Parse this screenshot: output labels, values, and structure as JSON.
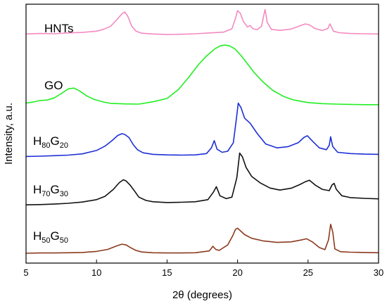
{
  "chart_data": {
    "type": "line",
    "title": "",
    "xlabel": "2θ (degrees)",
    "ylabel": "Intensity, a.u.",
    "xlim": [
      5,
      30
    ],
    "ylim": [
      0,
      100
    ],
    "xticks": [
      5,
      10,
      15,
      20,
      25,
      30
    ],
    "grid": false,
    "legend": "none",
    "series": [
      {
        "name": "HNTs",
        "label_text": "HNTs",
        "color": "#f48ac2",
        "x": [
          5,
          6,
          7,
          8,
          9,
          10,
          10.5,
          11,
          11.4,
          11.8,
          12.0,
          12.2,
          12.5,
          12.8,
          13.2,
          14,
          15,
          16,
          17,
          18,
          19,
          19.6,
          19.85,
          20.0,
          20.2,
          20.4,
          20.7,
          20.9,
          21.1,
          21.4,
          21.7,
          21.85,
          21.95,
          22.1,
          22.4,
          23,
          23.8,
          24.4,
          24.8,
          25.1,
          25.5,
          26.0,
          26.4,
          26.55,
          26.65,
          26.8,
          27.2,
          28,
          29,
          30
        ],
        "values": [
          88.5,
          88.7,
          88.6,
          88.9,
          89.1,
          89.6,
          90.3,
          91.5,
          93.8,
          96.3,
          97.0,
          95.5,
          91.5,
          89.6,
          88.8,
          88.5,
          88.3,
          88.4,
          88.6,
          88.9,
          89.2,
          90.5,
          94.5,
          97.5,
          96.5,
          93.5,
          91.2,
          91.8,
          90.5,
          90.2,
          91.5,
          95.5,
          98.0,
          93.0,
          90.3,
          89.9,
          90.4,
          91.6,
          92.4,
          92.0,
          90.6,
          89.9,
          90.6,
          92.4,
          91.3,
          89.6,
          89.0,
          88.7,
          88.6,
          88.5
        ]
      },
      {
        "name": "GO",
        "label_text": "GO",
        "color": "#22ee22",
        "x": [
          5,
          5.5,
          6,
          6.5,
          7,
          7.5,
          8,
          8.4,
          8.8,
          9.3,
          9.8,
          10.5,
          11,
          12,
          13,
          14,
          15,
          15.8,
          16.5,
          17.2,
          17.8,
          18.4,
          18.8,
          19.1,
          19.4,
          19.8,
          20.2,
          20.7,
          21.2,
          21.8,
          22.5,
          23.3,
          24,
          25,
          26,
          27,
          28,
          29,
          30
        ],
        "values": [
          61.8,
          62.2,
          62.8,
          63.0,
          63.8,
          65.5,
          67.3,
          67.6,
          66.5,
          64.6,
          63.3,
          62.2,
          61.7,
          61.5,
          61.4,
          62.3,
          63.6,
          67.0,
          71.5,
          76.5,
          80.0,
          82.8,
          84.0,
          84.2,
          84.0,
          82.8,
          80.5,
          77.0,
          73.5,
          70.0,
          66.7,
          64.3,
          63.0,
          62.0,
          61.6,
          61.4,
          61.3,
          61.2,
          61.2
        ]
      },
      {
        "name": "H80G20",
        "label_main": "H",
        "label_sub1": "80",
        "label_mid": "G",
        "label_sub2": "20",
        "color": "#1d2fd6",
        "x": [
          5,
          6,
          7,
          8,
          9,
          10,
          10.6,
          11.1,
          11.5,
          11.8,
          12.0,
          12.3,
          12.6,
          12.9,
          13.3,
          14,
          15,
          16,
          17,
          17.8,
          18.15,
          18.35,
          18.55,
          18.9,
          19.3,
          19.7,
          19.9,
          20.05,
          20.25,
          20.5,
          20.9,
          21.4,
          22,
          22.8,
          23.6,
          24.3,
          24.7,
          24.95,
          25.3,
          25.8,
          26.3,
          26.5,
          26.6,
          26.75,
          27.1,
          28,
          29,
          30
        ],
        "values": [
          41.2,
          41.3,
          41.5,
          41.7,
          42.2,
          43.5,
          45.2,
          47.3,
          49.3,
          50.0,
          49.7,
          48.5,
          45.8,
          43.8,
          42.6,
          42.0,
          41.8,
          41.7,
          41.8,
          42.3,
          44.5,
          47.3,
          44.0,
          42.8,
          43.2,
          46.5,
          55.0,
          61.8,
          60.0,
          56.0,
          54.0,
          50.0,
          46.0,
          44.5,
          45.0,
          46.5,
          48.5,
          49.2,
          47.2,
          44.5,
          43.8,
          45.5,
          48.8,
          45.0,
          42.8,
          42.3,
          42.1,
          42.0
        ]
      },
      {
        "name": "H70G30",
        "label_main": "H",
        "label_sub1": "70",
        "label_mid": "G",
        "label_sub2": "30",
        "color": "#111111",
        "x": [
          5,
          6,
          7,
          8,
          9,
          10,
          10.6,
          11.2,
          11.6,
          11.9,
          12.1,
          12.4,
          12.7,
          13.0,
          13.5,
          14,
          15,
          16,
          17,
          17.9,
          18.3,
          18.5,
          18.75,
          19.2,
          19.6,
          19.95,
          20.15,
          20.35,
          20.6,
          21.0,
          21.6,
          22.3,
          23,
          23.8,
          24.4,
          24.8,
          25.1,
          25.5,
          26.0,
          26.5,
          26.7,
          26.85,
          27.0,
          27.4,
          28,
          29,
          30
        ],
        "values": [
          22.5,
          22.6,
          22.8,
          23.1,
          23.6,
          24.5,
          25.8,
          28.5,
          31.0,
          32.2,
          31.7,
          30.0,
          27.8,
          25.5,
          24.2,
          23.7,
          23.4,
          23.5,
          23.7,
          24.5,
          27.5,
          29.5,
          26.0,
          24.9,
          25.5,
          33.0,
          42.5,
          41.0,
          37.0,
          33.5,
          31.0,
          29.0,
          28.2,
          28.9,
          30.3,
          31.4,
          32.0,
          30.2,
          28.5,
          28.0,
          30.2,
          30.8,
          28.5,
          26.0,
          25.3,
          25.0,
          24.8
        ]
      },
      {
        "name": "H50G50",
        "label_main": "H",
        "label_sub1": "50",
        "label_mid": "G",
        "label_sub2": "50",
        "color": "#8b3a1e",
        "x": [
          5,
          6,
          7,
          8,
          9,
          10,
          10.8,
          11.4,
          11.8,
          12.1,
          12.4,
          12.8,
          13.2,
          14,
          15,
          16,
          17,
          18,
          18.25,
          18.45,
          18.7,
          19.3,
          19.65,
          19.85,
          20.0,
          20.2,
          20.5,
          21.0,
          21.8,
          22.8,
          23.8,
          24.5,
          24.9,
          25.3,
          25.8,
          26.2,
          26.45,
          26.6,
          26.75,
          26.9,
          27.3,
          28,
          29,
          30
        ],
        "values": [
          3.8,
          3.9,
          3.9,
          4.0,
          4.1,
          4.5,
          5.3,
          6.6,
          7.3,
          7.0,
          6.0,
          4.9,
          4.3,
          4.0,
          3.9,
          3.9,
          4.0,
          4.7,
          6.5,
          5.3,
          4.9,
          7.0,
          10.5,
          13.0,
          13.5,
          12.5,
          11.0,
          9.6,
          8.6,
          8.0,
          8.2,
          8.9,
          9.4,
          8.2,
          6.0,
          5.2,
          9.0,
          15.0,
          12.0,
          5.5,
          4.4,
          4.2,
          4.1,
          4.0
        ]
      }
    ]
  }
}
